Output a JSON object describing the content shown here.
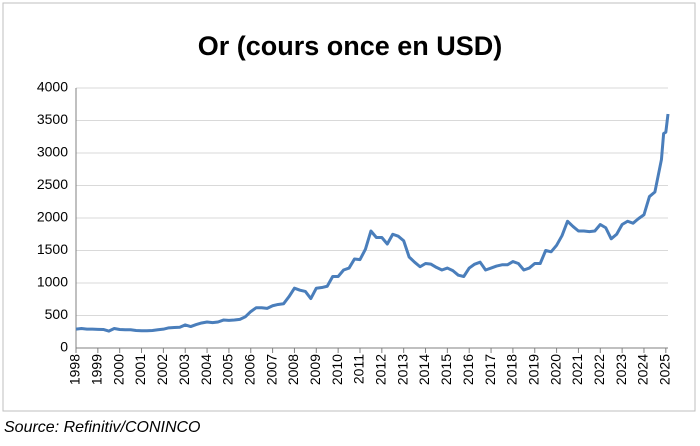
{
  "chart_data": {
    "type": "line",
    "title": "Or (cours once en USD)",
    "source": "Source: Refinitiv/CONINCO",
    "x": [
      1998,
      1998.25,
      1998.5,
      1998.75,
      1999,
      1999.25,
      1999.5,
      1999.75,
      2000,
      2000.25,
      2000.5,
      2000.75,
      2001,
      2001.25,
      2001.5,
      2001.75,
      2002,
      2002.25,
      2002.5,
      2002.75,
      2003,
      2003.25,
      2003.5,
      2003.75,
      2004,
      2004.25,
      2004.5,
      2004.75,
      2005,
      2005.25,
      2005.5,
      2005.75,
      2006,
      2006.25,
      2006.5,
      2006.75,
      2007,
      2007.25,
      2007.5,
      2007.75,
      2008,
      2008.25,
      2008.5,
      2008.75,
      2009,
      2009.25,
      2009.5,
      2009.75,
      2010,
      2010.25,
      2010.5,
      2010.75,
      2011,
      2011.25,
      2011.5,
      2011.75,
      2012,
      2012.25,
      2012.5,
      2012.75,
      2013,
      2013.25,
      2013.5,
      2013.75,
      2014,
      2014.25,
      2014.5,
      2014.75,
      2015,
      2015.25,
      2015.5,
      2015.75,
      2016,
      2016.25,
      2016.5,
      2016.75,
      2017,
      2017.25,
      2017.5,
      2017.75,
      2018,
      2018.25,
      2018.5,
      2018.75,
      2019,
      2019.25,
      2019.5,
      2019.75,
      2020,
      2020.25,
      2020.5,
      2020.75,
      2021,
      2021.25,
      2021.5,
      2021.75,
      2022,
      2022.25,
      2022.5,
      2022.75,
      2023,
      2023.25,
      2023.5,
      2023.75,
      2024,
      2024.25,
      2024.5,
      2024.65,
      2024.8,
      2024.9,
      2025,
      2025.1
    ],
    "series": [
      {
        "color": "#4a7ebb",
        "values": [
          290,
          300,
          290,
          290,
          287,
          285,
          260,
          300,
          285,
          280,
          280,
          270,
          265,
          265,
          270,
          280,
          290,
          310,
          315,
          320,
          355,
          330,
          360,
          385,
          400,
          390,
          400,
          430,
          425,
          430,
          440,
          480,
          560,
          620,
          620,
          610,
          650,
          670,
          680,
          790,
          920,
          890,
          870,
          760,
          920,
          930,
          950,
          1100,
          1100,
          1200,
          1230,
          1370,
          1360,
          1520,
          1800,
          1700,
          1700,
          1600,
          1750,
          1720,
          1650,
          1400,
          1320,
          1250,
          1300,
          1290,
          1240,
          1200,
          1230,
          1190,
          1120,
          1100,
          1230,
          1290,
          1320,
          1200,
          1230,
          1260,
          1280,
          1280,
          1330,
          1300,
          1200,
          1230,
          1300,
          1300,
          1500,
          1480,
          1580,
          1730,
          1950,
          1870,
          1800,
          1800,
          1790,
          1800,
          1900,
          1850,
          1680,
          1750,
          1900,
          1950,
          1920,
          1990,
          2050,
          2330,
          2400,
          2650,
          2900,
          3300,
          3320,
          3600
        ]
      }
    ],
    "xlim": [
      1998,
      2025.1
    ],
    "xticks": [
      1998,
      1999,
      2000,
      2001,
      2002,
      2003,
      2004,
      2005,
      2006,
      2007,
      2008,
      2009,
      2010,
      2011,
      2012,
      2013,
      2014,
      2015,
      2016,
      2017,
      2018,
      2019,
      2020,
      2021,
      2022,
      2023,
      2024,
      2025
    ],
    "ylim": [
      0,
      4000
    ],
    "yticks": [
      0,
      500,
      1000,
      1500,
      2000,
      2500,
      3000,
      3500,
      4000
    ],
    "grid": true
  }
}
